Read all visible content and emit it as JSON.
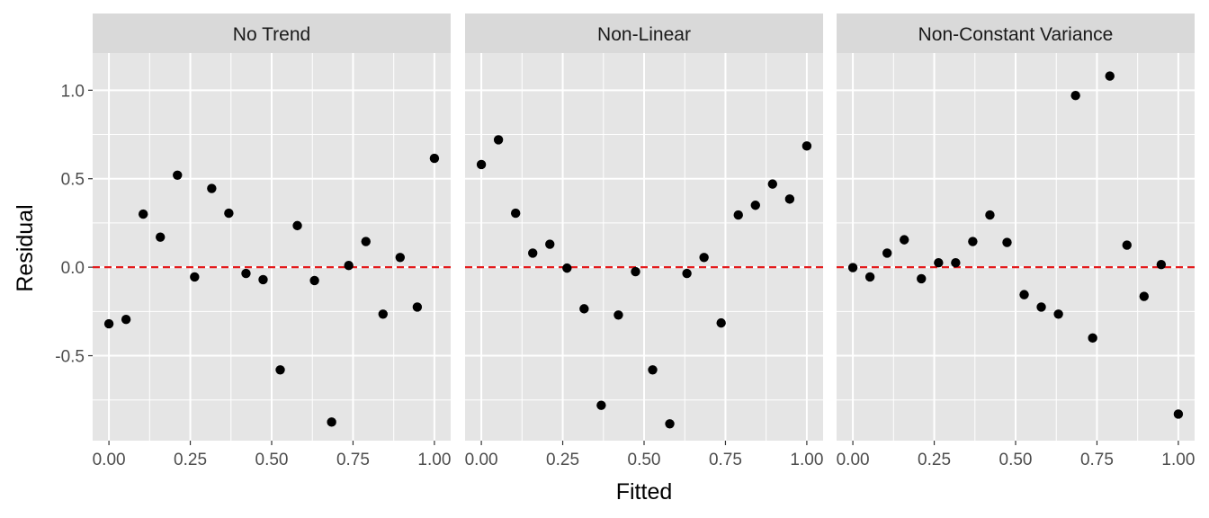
{
  "chart_data": {
    "type": "scatter",
    "layout": "facet-3-columns",
    "xlabel": "Fitted",
    "ylabel": "Residual",
    "xlim": [
      -0.05,
      1.05
    ],
    "ylim": [
      -0.98,
      1.21
    ],
    "x_ticks": [
      0,
      0.25,
      0.5,
      0.75,
      1
    ],
    "x_tick_labels": [
      "0.00",
      "0.25",
      "0.50",
      "0.75",
      "1.00"
    ],
    "y_ticks": [
      -0.5,
      0,
      0.5,
      1
    ],
    "y_tick_labels": [
      "-0.5",
      "0.0",
      "0.5",
      "1.0"
    ],
    "reference_line": {
      "y": 0,
      "style": "dashed",
      "color": "#e41a1c"
    },
    "colors": {
      "panel_bg": "#e5e5e5",
      "strip_bg": "#d9d9d9",
      "grid": "#ffffff",
      "point": "#000000",
      "text": "#1a1a1a",
      "tick": "#4d4d4d"
    },
    "x": [
      0.0,
      0.0526,
      0.1053,
      0.1579,
      0.2105,
      0.2632,
      0.3158,
      0.3684,
      0.4211,
      0.4737,
      0.5263,
      0.5789,
      0.6316,
      0.6842,
      0.7368,
      0.7895,
      0.8421,
      0.8947,
      0.9474,
      1.0
    ],
    "panels": [
      {
        "title": "No Trend",
        "y": [
          -0.32,
          -0.295,
          0.3,
          0.17,
          0.52,
          -0.055,
          0.445,
          0.305,
          -0.035,
          -0.07,
          -0.58,
          0.235,
          -0.075,
          -0.875,
          0.01,
          0.145,
          -0.265,
          0.055,
          -0.225,
          0.615
        ]
      },
      {
        "title": "Non-Linear",
        "y": [
          0.58,
          0.72,
          0.305,
          0.08,
          0.13,
          -0.005,
          -0.235,
          -0.78,
          -0.27,
          -0.025,
          -0.58,
          -0.885,
          -0.035,
          0.055,
          -0.315,
          0.295,
          0.35,
          0.47,
          0.385,
          0.685
        ]
      },
      {
        "title": "Non-Constant Variance",
        "y": [
          -0.002,
          -0.055,
          0.08,
          0.155,
          -0.065,
          0.025,
          0.025,
          0.145,
          0.295,
          0.14,
          -0.155,
          -0.225,
          -0.265,
          0.97,
          -0.4,
          1.08,
          0.125,
          -0.165,
          0.015,
          -0.83
        ]
      }
    ]
  }
}
